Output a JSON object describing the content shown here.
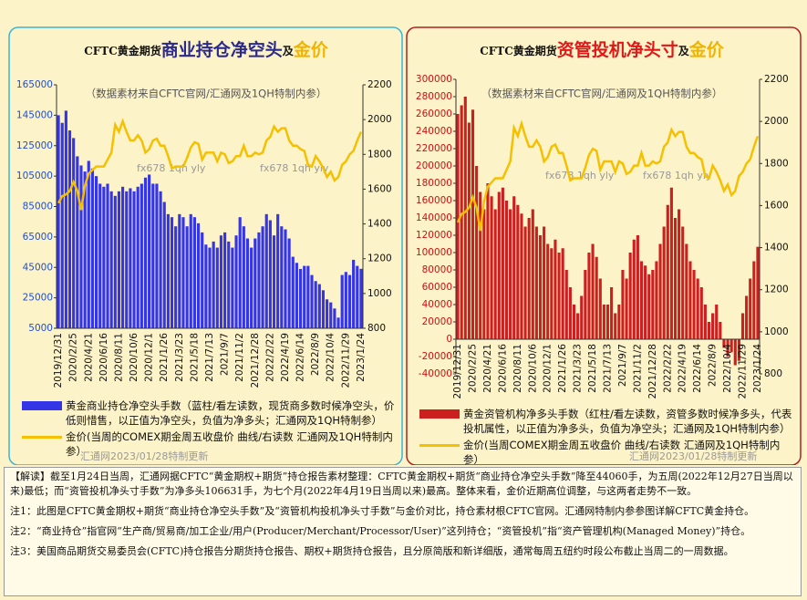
{
  "chart_data": [
    {
      "type": "bar_line",
      "title": [
        "CFTC黄金期货",
        "商业持仓净空头",
        "及",
        "金价"
      ],
      "title_colors": [
        "#111111",
        "#2a2a8c",
        "#111111",
        "#f0b400"
      ],
      "subtitle": "（数据素材来自CFTC官网/汇通网及1QH特制内参）",
      "watermark": "fx678 1qh yly",
      "footer": "汇通网2023/01/28特制更新",
      "ytick_color": "#1f4fd0",
      "categories": [
        "2019/12/31",
        null,
        null,
        null,
        "2020/2/25",
        null,
        null,
        null,
        "2020/4/21",
        null,
        null,
        null,
        "2020/6/16",
        null,
        null,
        null,
        "2020/8/11",
        null,
        null,
        null,
        "2020/10/6",
        null,
        null,
        null,
        "2020/12/1",
        null,
        null,
        null,
        "2021/1/26",
        null,
        null,
        null,
        "2021/3/23",
        null,
        null,
        null,
        "2021/5/18",
        null,
        null,
        null,
        "2021/7/13",
        null,
        null,
        null,
        "2021/9/7",
        null,
        null,
        null,
        "2021/11/2",
        null,
        null,
        null,
        "2021/12/28",
        null,
        null,
        null,
        "2022/2/22",
        null,
        null,
        null,
        "2022/4/19",
        null,
        null,
        null,
        "2022/6/14",
        null,
        null,
        null,
        "2022/8/9",
        null,
        null,
        null,
        "2022/10/4",
        null,
        null,
        null,
        "2022/11/29",
        null,
        null,
        null,
        "2023/1/24"
      ],
      "series": [
        {
          "name": "黄金商业持仓净空头手数（蓝柱/看左读数，现货商多数时候净空头，价低则惜售，以正值为净空头，负值为净多头；汇通网及1QH特制参）",
          "type": "bar",
          "color": "#3535e8",
          "values": [
            145000,
            140000,
            148000,
            135000,
            130000,
            118000,
            112000,
            108000,
            115000,
            110000,
            105000,
            100000,
            98000,
            100000,
            95000,
            92000,
            95000,
            98000,
            95000,
            97000,
            95000,
            98000,
            100000,
            104000,
            106000,
            100000,
            100000,
            95000,
            88000,
            80000,
            78000,
            72000,
            80000,
            78000,
            72000,
            80000,
            78000,
            74000,
            68000,
            60000,
            58000,
            62000,
            58000,
            66000,
            68000,
            62000,
            58000,
            66000,
            78000,
            72000,
            64000,
            58000,
            64000,
            68000,
            72000,
            80000,
            76000,
            66000,
            80000,
            72000,
            70000,
            64000,
            52000,
            48000,
            44000,
            46000,
            46000,
            40000,
            36000,
            34000,
            30000,
            24000,
            22000,
            18000,
            12000,
            40000,
            42000,
            40000,
            50000,
            46000,
            44060
          ]
        },
        {
          "name": "金价(当周的COMEX期金周五收盘价 曲线/右读数 汇通网及1QH特制内参）",
          "type": "line",
          "axis": "y2",
          "color": "#f5c000",
          "values": [
            1520,
            1560,
            1570,
            1590,
            1640,
            1590,
            1480,
            1620,
            1690,
            1710,
            1730,
            1730,
            1730,
            1770,
            1810,
            1970,
            1930,
            1990,
            1930,
            1880,
            1880,
            1910,
            1880,
            1810,
            1830,
            1880,
            1890,
            1850,
            1850,
            1790,
            1720,
            1730,
            1730,
            1730,
            1780,
            1840,
            1870,
            1860,
            1770,
            1810,
            1810,
            1810,
            1760,
            1810,
            1800,
            1750,
            1760,
            1790,
            1790,
            1850,
            1790,
            1790,
            1810,
            1800,
            1810,
            1880,
            1900,
            1960,
            1930,
            1950,
            1950,
            1880,
            1850,
            1850,
            1830,
            1820,
            1740,
            1730,
            1790,
            1760,
            1720,
            1670,
            1700,
            1650,
            1670,
            1740,
            1760,
            1800,
            1820,
            1880,
            1930
          ]
        }
      ],
      "ylim": [
        5000,
        165000
      ],
      "yticks": [
        5000,
        25000,
        45000,
        65000,
        85000,
        105000,
        125000,
        145000,
        165000
      ],
      "y2lim": [
        800,
        2200
      ],
      "y2ticks": [
        800,
        1000,
        1200,
        1400,
        1600,
        1800,
        2000,
        2200
      ]
    },
    {
      "type": "bar_line",
      "title": [
        "CFTC黄金期货",
        "资管投机净头寸",
        "及",
        "金价"
      ],
      "title_colors": [
        "#111111",
        "#e01818",
        "#111111",
        "#f0b400"
      ],
      "subtitle": "（数据素材来自CFTC官网/汇通网及1QH特制内参）",
      "watermark": "fx678 1qh yly",
      "footer": "汇通网2023/01/28特制更新",
      "ytick_color": "#d01010",
      "categories": [
        "2019/12/31",
        null,
        null,
        null,
        "2020/2/25",
        null,
        null,
        null,
        "2020/4/21",
        null,
        null,
        null,
        "2020/6/16",
        null,
        null,
        null,
        "2020/8/11",
        null,
        null,
        null,
        "2020/10/6",
        null,
        null,
        null,
        "2020/12/1",
        null,
        null,
        null,
        "2021/1/26",
        null,
        null,
        null,
        "2021/3/23",
        null,
        null,
        null,
        "2021/5/18",
        null,
        null,
        null,
        "2021/7/13",
        null,
        null,
        null,
        "2021/9/7",
        null,
        null,
        null,
        "2021/11/2",
        null,
        null,
        null,
        "2021/12/28",
        null,
        null,
        null,
        "2022/2/22",
        null,
        null,
        null,
        "2022/4/19",
        null,
        null,
        null,
        "2022/6/14",
        null,
        null,
        null,
        "2022/8/9",
        null,
        null,
        null,
        "2022/10/4",
        null,
        null,
        null,
        "2022/11/29",
        null,
        null,
        null,
        "2023/1/24"
      ],
      "series": [
        {
          "name": "黄金资管机构净多头手数（红柱/看左读数，资管多数时候净多头，代表投机属性，以正值为净多头，负值为净空头；汇通网及1QH特制内参）",
          "type": "bar",
          "color": "#cc2020",
          "values": [
            260000,
            270000,
            280000,
            250000,
            265000,
            200000,
            170000,
            150000,
            180000,
            165000,
            150000,
            170000,
            175000,
            160000,
            150000,
            165000,
            155000,
            145000,
            130000,
            140000,
            150000,
            130000,
            120000,
            130000,
            110000,
            105000,
            115000,
            100000,
            105000,
            80000,
            60000,
            40000,
            30000,
            50000,
            80000,
            100000,
            110000,
            95000,
            70000,
            40000,
            40000,
            60000,
            30000,
            40000,
            80000,
            70000,
            100000,
            115000,
            120000,
            90000,
            85000,
            75000,
            80000,
            90000,
            110000,
            130000,
            155000,
            175000,
            140000,
            150000,
            130000,
            110000,
            90000,
            80000,
            70000,
            60000,
            40000,
            20000,
            30000,
            40000,
            20000,
            -10000,
            -20000,
            -15000,
            -30000,
            -25000,
            30000,
            50000,
            70000,
            90000,
            106631
          ]
        },
        {
          "name": "金价(当周COMEX期金周五收盘价 曲线/右读数 汇通网及1QH特制内参）",
          "type": "line",
          "axis": "y2",
          "color": "#f5c000",
          "values": [
            1520,
            1560,
            1570,
            1590,
            1640,
            1590,
            1480,
            1620,
            1690,
            1710,
            1730,
            1730,
            1730,
            1770,
            1810,
            1970,
            1930,
            1990,
            1930,
            1880,
            1880,
            1910,
            1880,
            1810,
            1830,
            1880,
            1890,
            1850,
            1850,
            1790,
            1720,
            1730,
            1730,
            1730,
            1780,
            1840,
            1870,
            1860,
            1770,
            1810,
            1810,
            1810,
            1760,
            1810,
            1800,
            1750,
            1760,
            1790,
            1790,
            1850,
            1790,
            1790,
            1810,
            1800,
            1810,
            1880,
            1900,
            1960,
            1930,
            1950,
            1950,
            1880,
            1850,
            1850,
            1830,
            1820,
            1740,
            1730,
            1790,
            1760,
            1720,
            1670,
            1700,
            1650,
            1670,
            1740,
            1760,
            1800,
            1820,
            1880,
            1930
          ]
        }
      ],
      "ylim": [
        -40000,
        300000
      ],
      "yticks": [
        -40000,
        -20000,
        0,
        20000,
        40000,
        60000,
        80000,
        100000,
        120000,
        140000,
        160000,
        180000,
        200000,
        220000,
        240000,
        260000,
        280000,
        300000
      ],
      "y2lim": [
        800,
        2200
      ],
      "y2ticks": [
        800,
        1000,
        1200,
        1400,
        1600,
        1800,
        2000,
        2200
      ]
    }
  ],
  "notes": [
    "【解读】截至1月24日当周，汇通网据CFTC“黄金期权+期货”持仓报告素材整理：CFTC黄金期权+期货“商业持仓净空头手数”降至44060手，为五周(2022年12月27日当周以来)最低；而“资管投机净头寸手数”为净多头106631手，为七个月(2022年4月19日当周以来)最高。整体来看，金价近期高位调整，与这两者走势不一致。",
    "注1：此图是CFTC黄金期权+期货“商业持仓净空头手数”及“资管机构投机净头寸手数”与金价对比，持仓素材根CFTC官网。汇通网特制内参参图详解CFTC黄金持仓。",
    "注2：“商业持仓”指官网“生产商/贸易商/加工企业/用户(Producer/Merchant/Processor/User)”这列持仓；“资管投机”指“资产管理机构(Managed Money)”持仓。",
    "注3：美国商品期货交易委员会(CFTC)持仓报告分期货持仓报告、期权+期货持仓报告，且分原简版和新详细版，通常每周五纽约时段公布截止当周二的一周数据。"
  ]
}
